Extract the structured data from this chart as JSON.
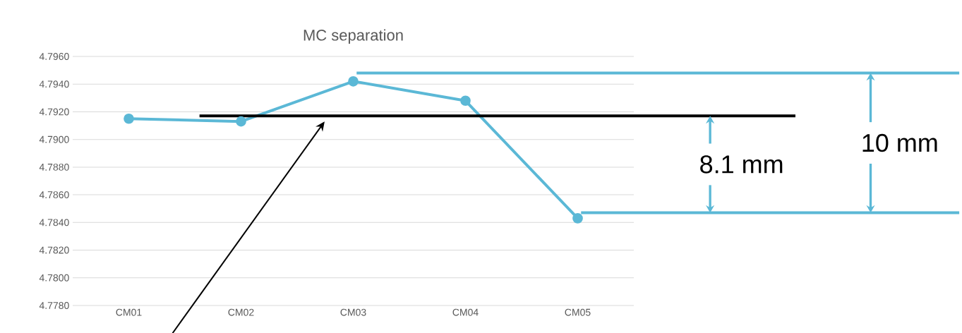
{
  "chart_data": {
    "type": "line",
    "title": "MC separation",
    "categories": [
      "CM01",
      "CM02",
      "CM03",
      "CM04",
      "CM05"
    ],
    "series": [
      {
        "color": "#5bb8d6",
        "values": [
          4.7915,
          4.7913,
          4.7942,
          4.7928,
          4.7843
        ]
      }
    ],
    "ylim": [
      4.778,
      4.796
    ],
    "yticks": [
      {
        "value": 4.778,
        "label": "4.7780"
      },
      {
        "value": 4.78,
        "label": "4.7800"
      },
      {
        "value": 4.782,
        "label": "4.7820"
      },
      {
        "value": 4.784,
        "label": "4.7840"
      },
      {
        "value": 4.786,
        "label": "4.7860"
      },
      {
        "value": 4.788,
        "label": "4.7880"
      },
      {
        "value": 4.79,
        "label": "4.7900"
      },
      {
        "value": 4.792,
        "label": "4.7920"
      },
      {
        "value": 4.794,
        "label": "4.7940"
      },
      {
        "value": 4.796,
        "label": "4.7960"
      }
    ],
    "grid": "y",
    "marker": "circle",
    "ref_lines": [
      {
        "axis": "y",
        "value": 4.7917,
        "color": "#000000"
      },
      {
        "axis": "y",
        "value": 4.7948,
        "color": "#5bb8d6"
      },
      {
        "axis": "y",
        "value": 4.7847,
        "color": "#5bb8d6"
      }
    ],
    "annotations": [
      "8.1 mm",
      "10 mm"
    ]
  }
}
